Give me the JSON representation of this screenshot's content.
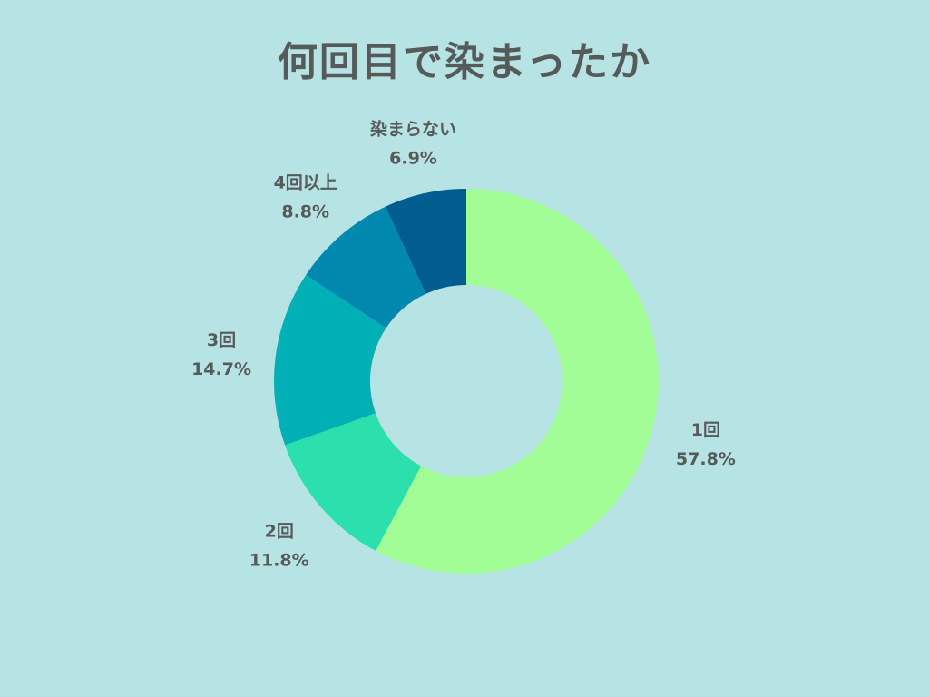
{
  "chart_data": {
    "type": "pie",
    "title": "何回目で染まったか",
    "categories": [
      "1回",
      "2回",
      "3回",
      "4回以上",
      "染まらない"
    ],
    "values": [
      57.8,
      11.8,
      14.7,
      8.8,
      6.9
    ],
    "value_labels": [
      "57.8%",
      "11.8%",
      "14.7%",
      "8.8%",
      "6.9%"
    ],
    "colors": [
      "#a0fd95",
      "#2ce0ad",
      "#00b0b5",
      "#0088ae",
      "#005d90"
    ],
    "donut": true,
    "start": "top",
    "direction": "clockwise",
    "legend": "none"
  }
}
